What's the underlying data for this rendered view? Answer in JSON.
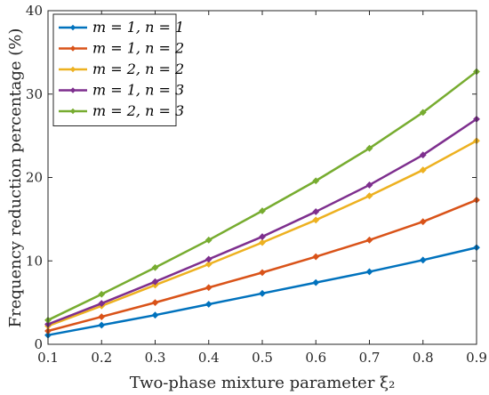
{
  "chart_data": {
    "type": "line",
    "xlabel": "Two-phase mixture parameter ξ₂",
    "ylabel": "Frequency reduction percentage (%)",
    "xlim": [
      0.1,
      0.9
    ],
    "ylim": [
      0,
      40
    ],
    "xticks": [
      0.1,
      0.2,
      0.3,
      0.4,
      0.5,
      0.6,
      0.7,
      0.8,
      0.9
    ],
    "xtick_labels": [
      "0.1",
      "0.2",
      "0.3",
      "0.4",
      "0.5",
      "0.6",
      "0.7",
      "0.8",
      "0.9"
    ],
    "yticks": [
      0,
      10,
      20,
      30,
      40
    ],
    "ytick_labels": [
      "0",
      "10",
      "20",
      "30",
      "40"
    ],
    "grid": false,
    "legend_position": "top-left",
    "x": [
      0.1,
      0.2,
      0.3,
      0.4,
      0.5,
      0.6,
      0.7,
      0.8,
      0.9
    ],
    "series": [
      {
        "name": "m = 1, n = 1",
        "color": "#0072BD",
        "values": [
          1.1,
          2.3,
          3.5,
          4.8,
          6.1,
          7.4,
          8.7,
          10.1,
          11.6
        ]
      },
      {
        "name": "m = 1, n = 2",
        "color": "#D95319",
        "values": [
          1.6,
          3.3,
          5.0,
          6.8,
          8.6,
          10.5,
          12.5,
          14.7,
          17.3
        ]
      },
      {
        "name": "m = 2, n = 2",
        "color": "#EDB120",
        "values": [
          2.2,
          4.6,
          7.1,
          9.6,
          12.2,
          14.9,
          17.8,
          20.9,
          24.4
        ]
      },
      {
        "name": "m = 1, n = 3",
        "color": "#7E2F8E",
        "values": [
          2.4,
          4.9,
          7.5,
          10.2,
          12.9,
          15.9,
          19.1,
          22.7,
          27.0
        ]
      },
      {
        "name": "m = 2, n = 3",
        "color": "#77AC30",
        "values": [
          2.9,
          6.0,
          9.2,
          12.5,
          16.0,
          19.6,
          23.5,
          27.8,
          32.7
        ]
      }
    ]
  }
}
